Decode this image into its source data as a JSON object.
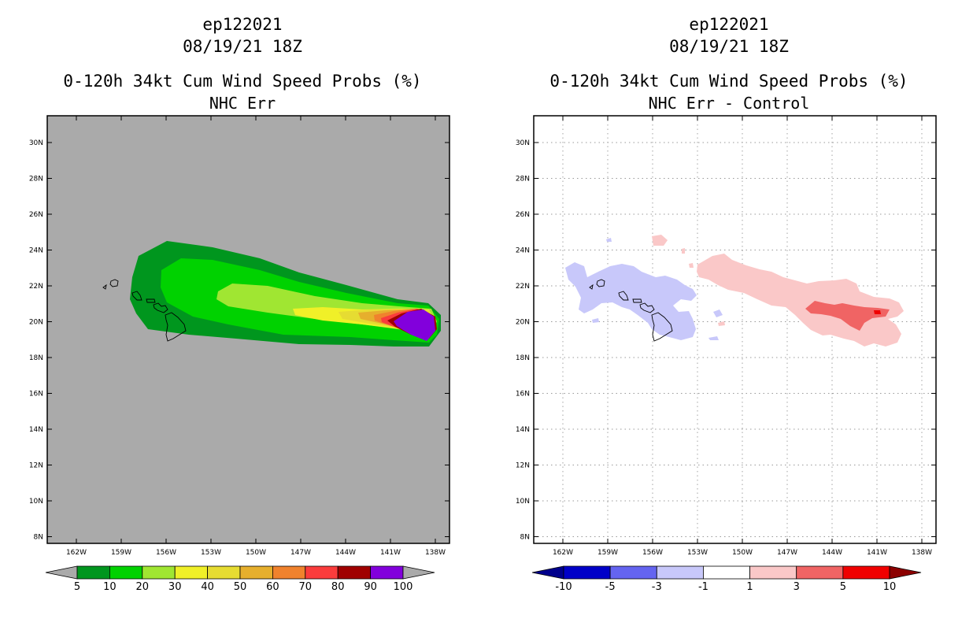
{
  "panels": [
    {
      "id": "left",
      "storm_id": "ep122021",
      "datetime": "08/19/21 18Z",
      "product": "0-120h 34kt Cum Wind Speed Probs (%)",
      "subtitle": "NHC Err",
      "background": "#aaaaaa",
      "colorbar": {
        "labels": [
          "5",
          "10",
          "20",
          "30",
          "40",
          "50",
          "60",
          "70",
          "80",
          "90",
          "100"
        ],
        "colors": [
          "#00961e",
          "#00d200",
          "#a0e632",
          "#f0f028",
          "#e6dc32",
          "#e6af2d",
          "#f0822d",
          "#fa3c3c",
          "#a00000",
          "#8200dc"
        ],
        "under_color": "#aaaaaa",
        "over_color": "#aaaaaa"
      }
    },
    {
      "id": "right",
      "storm_id": "ep122021",
      "datetime": "08/19/21 18Z",
      "product": "0-120h 34kt Cum Wind Speed Probs (%)",
      "subtitle": "NHC Err - Control",
      "background": "#ffffff",
      "colorbar": {
        "labels": [
          "-10",
          "-5",
          "-3",
          "-1",
          "1",
          "3",
          "5",
          "10"
        ],
        "colors": [
          "#0000c8",
          "#6464f0",
          "#c8c8fa",
          "#ffffff",
          "#fac8c8",
          "#f06464",
          "#f00000"
        ],
        "under_color": "#00008c",
        "over_color": "#8c0000"
      }
    }
  ],
  "axes": {
    "lat_labels": [
      "30N",
      "28N",
      "26N",
      "24N",
      "22N",
      "20N",
      "18N",
      "16N",
      "14N",
      "12N",
      "10N",
      "8N"
    ],
    "lon_labels": [
      "162W",
      "159W",
      "156W",
      "153W",
      "150W",
      "147W",
      "144W",
      "141W",
      "138W"
    ]
  }
}
